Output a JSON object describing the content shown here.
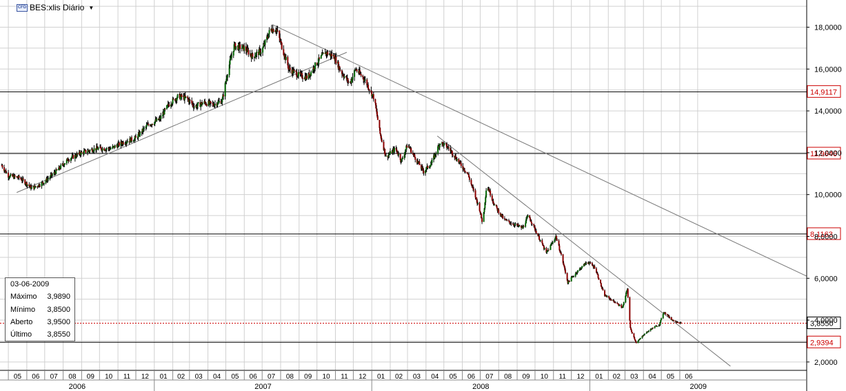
{
  "header": {
    "badge": "CFD",
    "symbol": "BES:xlis Diário"
  },
  "info_box": {
    "date": "03-06-2009",
    "rows": [
      {
        "label": "Máximo",
        "value": "3,9890"
      },
      {
        "label": "Mínimo",
        "value": "3,8500"
      },
      {
        "label": "Aberto",
        "value": "3,9500"
      },
      {
        "label": "Último",
        "value": "3,8550"
      }
    ]
  },
  "colors": {
    "up_candle": "#006400",
    "down_candle": "#8b0000",
    "grid": "#d0d0d0",
    "level_line": "#000000",
    "trend_line": "#777777",
    "last_price_line": "#cc0000",
    "level_label": "#cc0000"
  },
  "chart_data": {
    "type": "line",
    "subtype": "candlestick",
    "title": "BES:xlis Diário",
    "x_range": [
      "2006-04-20",
      "2009-12-31"
    ],
    "ylim": [
      1.6,
      19.3
    ],
    "y_ticks": [
      "2,0000",
      "4,0000",
      "6,0000",
      "8,0000",
      "10,0000",
      "12,0000",
      "14,0000",
      "16,0000",
      "18,0000"
    ],
    "y_tick_values": [
      2,
      4,
      6,
      8,
      10,
      12,
      14,
      16,
      18
    ],
    "x_months": [
      "05",
      "06",
      "07",
      "08",
      "09",
      "10",
      "11",
      "12",
      "01",
      "02",
      "03",
      "04",
      "05",
      "06",
      "07",
      "08",
      "09",
      "10",
      "11",
      "12",
      "01",
      "02",
      "03",
      "04",
      "05",
      "06",
      "07",
      "08",
      "09",
      "10",
      "11",
      "12",
      "01",
      "02",
      "03",
      "04",
      "05",
      "06"
    ],
    "x_years": [
      "2006",
      "2007",
      "2008",
      "2009"
    ],
    "grid": true,
    "price_levels": [
      {
        "value": 14.9117,
        "label": "14,9117"
      },
      {
        "value": 11.9646,
        "label": "11,9646"
      },
      {
        "value": 8.1163,
        "label": "8,1163"
      },
      {
        "value": 2.9394,
        "label": "2,9394"
      }
    ],
    "last_price": {
      "value": 3.855,
      "label": "3,8550"
    },
    "trend_lines": [
      {
        "from": {
          "date": "2006-05-15",
          "price": 10.1
        },
        "to": {
          "date": "2007-11-20",
          "price": 16.8
        }
      },
      {
        "from": {
          "date": "2007-07-20",
          "price": 18.1
        },
        "to": {
          "date": "2009-12-31",
          "price": 6.1
        }
      },
      {
        "from": {
          "date": "2008-04-20",
          "price": 12.8
        },
        "to": {
          "date": "2009-08-25",
          "price": 1.8
        }
      }
    ],
    "price_path": [
      [
        "2006-04-20",
        11.4
      ],
      [
        "2006-05-01",
        10.9
      ],
      [
        "2006-05-20",
        10.8
      ],
      [
        "2006-06-10",
        10.3
      ],
      [
        "2006-06-30",
        10.6
      ],
      [
        "2006-07-20",
        11.1
      ],
      [
        "2006-08-10",
        11.7
      ],
      [
        "2006-09-01",
        12.0
      ],
      [
        "2006-09-25",
        12.2
      ],
      [
        "2006-10-20",
        12.2
      ],
      [
        "2006-11-10",
        12.5
      ],
      [
        "2006-12-01",
        12.7
      ],
      [
        "2006-12-20",
        13.3
      ],
      [
        "2007-01-10",
        13.6
      ],
      [
        "2007-01-25",
        14.3
      ],
      [
        "2007-02-10",
        14.7
      ],
      [
        "2007-02-25",
        14.6
      ],
      [
        "2007-03-10",
        14.2
      ],
      [
        "2007-03-25",
        14.4
      ],
      [
        "2007-04-10",
        14.3
      ],
      [
        "2007-04-25",
        14.5
      ],
      [
        "2007-05-05",
        16.0
      ],
      [
        "2007-05-15",
        17.1
      ],
      [
        "2007-06-01",
        17.0
      ],
      [
        "2007-06-15",
        16.6
      ],
      [
        "2007-07-01",
        16.9
      ],
      [
        "2007-07-15",
        17.9
      ],
      [
        "2007-07-25",
        17.9
      ],
      [
        "2007-08-05",
        16.9
      ],
      [
        "2007-08-15",
        16.0
      ],
      [
        "2007-09-01",
        15.7
      ],
      [
        "2007-09-15",
        15.6
      ],
      [
        "2007-10-01",
        16.3
      ],
      [
        "2007-10-15",
        16.8
      ],
      [
        "2007-10-30",
        16.6
      ],
      [
        "2007-11-10",
        15.9
      ],
      [
        "2007-11-25",
        15.3
      ],
      [
        "2007-12-05",
        16.0
      ],
      [
        "2007-12-20",
        15.5
      ],
      [
        "2008-01-05",
        14.6
      ],
      [
        "2008-01-15",
        12.9
      ],
      [
        "2008-01-25",
        11.8
      ],
      [
        "2008-02-10",
        12.2
      ],
      [
        "2008-02-20",
        11.6
      ],
      [
        "2008-03-01",
        12.4
      ],
      [
        "2008-03-15",
        11.7
      ],
      [
        "2008-03-28",
        11.1
      ],
      [
        "2008-04-10",
        11.5
      ],
      [
        "2008-04-25",
        12.5
      ],
      [
        "2008-05-10",
        12.2
      ],
      [
        "2008-05-25",
        11.6
      ],
      [
        "2008-06-10",
        11.0
      ],
      [
        "2008-06-30",
        9.3
      ],
      [
        "2008-07-05",
        8.6
      ],
      [
        "2008-07-12",
        10.5
      ],
      [
        "2008-07-25",
        9.5
      ],
      [
        "2008-08-10",
        8.8
      ],
      [
        "2008-08-25",
        8.6
      ],
      [
        "2008-09-10",
        8.4
      ],
      [
        "2008-09-20",
        9.0
      ],
      [
        "2008-10-05",
        8.1
      ],
      [
        "2008-10-20",
        7.2
      ],
      [
        "2008-11-05",
        8.0
      ],
      [
        "2008-11-15",
        7.0
      ],
      [
        "2008-11-25",
        5.8
      ],
      [
        "2008-12-10",
        6.3
      ],
      [
        "2008-12-28",
        6.8
      ],
      [
        "2009-01-10",
        6.5
      ],
      [
        "2009-01-25",
        5.2
      ],
      [
        "2009-02-10",
        4.9
      ],
      [
        "2009-02-25",
        4.6
      ],
      [
        "2009-03-05",
        5.5
      ],
      [
        "2009-03-10",
        3.6
      ],
      [
        "2009-03-20",
        2.9
      ],
      [
        "2009-04-01",
        3.3
      ],
      [
        "2009-04-15",
        3.6
      ],
      [
        "2009-04-28",
        3.8
      ],
      [
        "2009-05-05",
        4.4
      ],
      [
        "2009-05-20",
        4.0
      ],
      [
        "2009-06-03",
        3.855
      ]
    ]
  }
}
